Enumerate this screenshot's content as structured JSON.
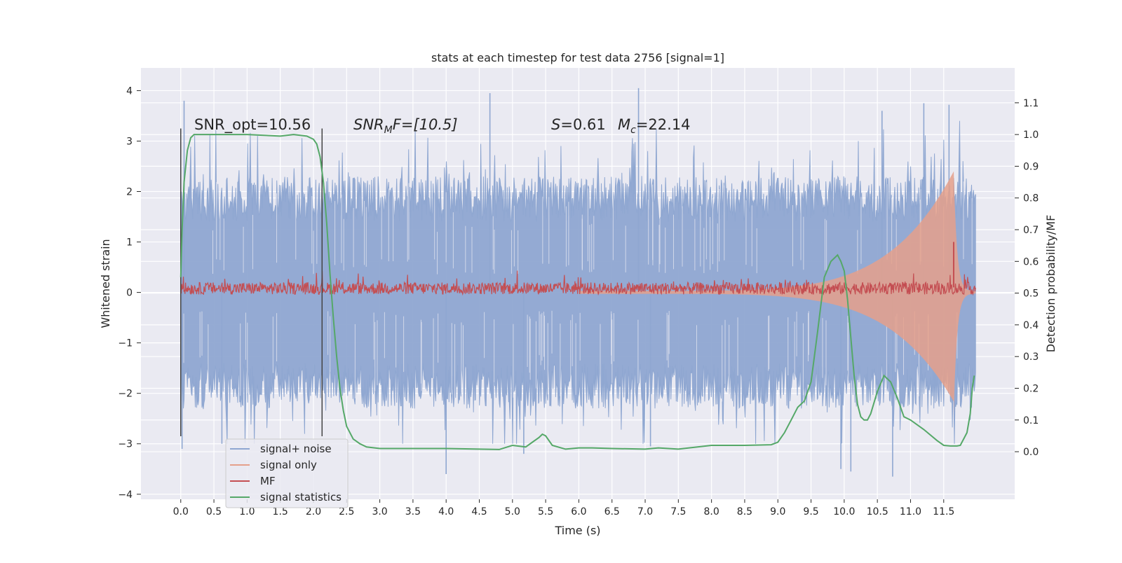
{
  "chart_data": {
    "type": "line",
    "title": "stats at each timestep for test data 2756 [signal=1]",
    "xlabel": "Time (s)",
    "ylabel": "Whitened strain",
    "y2label": "Detection probability/MF",
    "xlim": [
      -0.6,
      12.57
    ],
    "ylim": [
      -4.1,
      4.45
    ],
    "y2lim": [
      -0.15,
      1.21
    ],
    "x_ticks": [
      0.0,
      0.5,
      1.0,
      1.5,
      2.0,
      2.5,
      3.0,
      3.5,
      4.0,
      4.5,
      5.0,
      5.5,
      6.0,
      6.5,
      7.0,
      7.5,
      8.0,
      8.5,
      9.0,
      9.5,
      10.0,
      10.5,
      11.0,
      11.5
    ],
    "x_tick_labels": [
      "0.0",
      "0.5",
      "1.0",
      "1.5",
      "2.0",
      "2.5",
      "3.0",
      "3.5",
      "4.0",
      "4.5",
      "5.0",
      "5.5",
      "6.0",
      "6.5",
      "7.0",
      "7.5",
      "8.0",
      "8.5",
      "9.0",
      "9.5",
      "10.0",
      "10.5",
      "11.0",
      "11.5"
    ],
    "y_ticks": [
      -4,
      -3,
      -2,
      -1,
      0,
      1,
      2,
      3,
      4
    ],
    "y_tick_labels": [
      "−4",
      "−3",
      "−2",
      "−1",
      "0",
      "1",
      "2",
      "3",
      "4"
    ],
    "y2_ticks": [
      0.0,
      0.1,
      0.2,
      0.3,
      0.4,
      0.5,
      0.6,
      0.7,
      0.8,
      0.9,
      1.0,
      1.1
    ],
    "y2_tick_labels": [
      "0.0",
      "0.1",
      "0.2",
      "0.3",
      "0.4",
      "0.5",
      "0.6",
      "0.7",
      "0.8",
      "0.9",
      "1.0",
      "1.1"
    ],
    "grid": true,
    "legend_position": "lower-left",
    "annotations": {
      "snr_opt": "SNR_opt=10.56",
      "snr_mf_base": "SNR",
      "snr_mf_sub": "M",
      "snr_mf_rest": "F=[10.5]",
      "s_sym": "S",
      "s_val": "=0.61",
      "mc_sym": "M",
      "mc_sub": "c",
      "mc_val": "=22.14"
    },
    "vlines": [
      0.0,
      2.13
    ],
    "vline_range": [
      -2.85,
      3.25
    ],
    "series": [
      {
        "name": "signal+ noise",
        "color": "#8fa7d1",
        "axis": "left",
        "description_t_range": [
          0.0,
          11.98
        ],
        "typical_band": [
          -1.5,
          1.5
        ],
        "spike_range": [
          -3.7,
          4.1
        ],
        "sample_spikes": [
          [
            0.05,
            3.8
          ],
          [
            0.02,
            -3.1
          ],
          [
            0.62,
            -3.0
          ],
          [
            4.0,
            -3.6
          ],
          [
            4.66,
            3.95
          ],
          [
            5.17,
            -3.2
          ],
          [
            6.9,
            4.05
          ],
          [
            7.08,
            -3.05
          ],
          [
            9.95,
            -3.5
          ],
          [
            10.1,
            -3.55
          ],
          [
            10.57,
            3.6
          ],
          [
            10.73,
            -3.65
          ],
          [
            11.2,
            3.75
          ],
          [
            11.58,
            3.72
          ]
        ]
      },
      {
        "name": "signal only",
        "color": "#e5a08b",
        "axis": "left",
        "description": "chirp growing from ~0 to peak near t=11.65",
        "peak_time": 11.65,
        "peak_amp": 2.4
      },
      {
        "name": "MF",
        "color": "#c44e52",
        "axis": "left",
        "baseline": 0.08,
        "band": [
          -0.05,
          0.28
        ],
        "peak_time": 11.65,
        "peak_amp": 1.0
      },
      {
        "name": "signal statistics",
        "color": "#55a868",
        "axis": "right",
        "x": [
          0.0,
          0.02,
          0.05,
          0.1,
          0.15,
          0.2,
          0.3,
          0.5,
          1.0,
          1.5,
          1.7,
          1.9,
          2.0,
          2.05,
          2.1,
          2.15,
          2.2,
          2.25,
          2.3,
          2.35,
          2.4,
          2.45,
          2.5,
          2.6,
          2.7,
          2.8,
          3.0,
          3.5,
          4.0,
          4.5,
          4.8,
          5.0,
          5.2,
          5.3,
          5.4,
          5.45,
          5.5,
          5.6,
          5.8,
          6.0,
          6.2,
          6.5,
          7.0,
          7.2,
          7.5,
          8.0,
          8.5,
          8.9,
          9.0,
          9.1,
          9.2,
          9.3,
          9.4,
          9.5,
          9.6,
          9.7,
          9.8,
          9.9,
          9.95,
          10.0,
          10.05,
          10.1,
          10.15,
          10.2,
          10.25,
          10.3,
          10.35,
          10.4,
          10.5,
          10.6,
          10.7,
          10.8,
          10.9,
          11.0,
          11.2,
          11.4,
          11.5,
          11.6,
          11.7,
          11.75,
          11.8,
          11.85,
          11.9,
          11.93,
          11.96
        ],
        "values": [
          0.55,
          0.7,
          0.85,
          0.95,
          0.99,
          1.0,
          1.0,
          1.0,
          1.0,
          0.995,
          1.0,
          0.995,
          0.985,
          0.97,
          0.93,
          0.85,
          0.72,
          0.56,
          0.42,
          0.3,
          0.2,
          0.13,
          0.08,
          0.04,
          0.025,
          0.015,
          0.01,
          0.01,
          0.01,
          0.008,
          0.007,
          0.02,
          0.015,
          0.03,
          0.045,
          0.055,
          0.05,
          0.02,
          0.008,
          0.012,
          0.012,
          0.01,
          0.008,
          0.012,
          0.008,
          0.02,
          0.02,
          0.022,
          0.03,
          0.06,
          0.1,
          0.14,
          0.16,
          0.22,
          0.38,
          0.55,
          0.6,
          0.62,
          0.6,
          0.57,
          0.48,
          0.36,
          0.24,
          0.15,
          0.11,
          0.1,
          0.1,
          0.12,
          0.19,
          0.24,
          0.22,
          0.17,
          0.11,
          0.1,
          0.07,
          0.035,
          0.02,
          0.018,
          0.018,
          0.02,
          0.04,
          0.06,
          0.12,
          0.2,
          0.24
        ]
      }
    ]
  }
}
